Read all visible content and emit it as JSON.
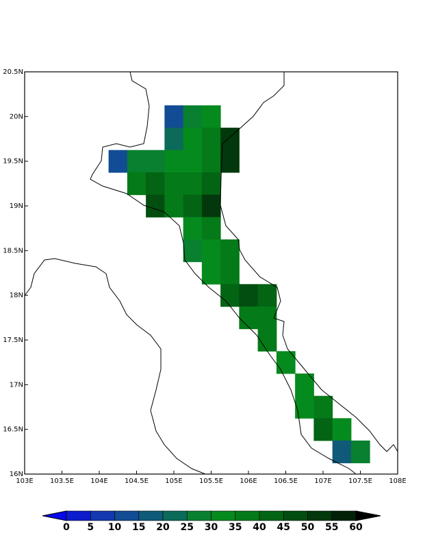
{
  "chart_data": {
    "type": "gridmap",
    "xlim": [
      103,
      108
    ],
    "ylim": [
      16,
      20.5
    ],
    "xticks": [
      {
        "value": 103,
        "label": "103E"
      },
      {
        "value": 103.5,
        "label": "103.5E"
      },
      {
        "value": 104,
        "label": "104E"
      },
      {
        "value": 104.5,
        "label": "104.5E"
      },
      {
        "value": 105,
        "label": "105E"
      },
      {
        "value": 105.5,
        "label": "105.5E"
      },
      {
        "value": 106,
        "label": "106E"
      },
      {
        "value": 106.5,
        "label": "106.5E"
      },
      {
        "value": 107,
        "label": "107E"
      },
      {
        "value": 107.5,
        "label": "107.5E"
      },
      {
        "value": 108,
        "label": "108E"
      }
    ],
    "yticks": [
      {
        "value": 16,
        "label": "16N"
      },
      {
        "value": 16.5,
        "label": "16.5N"
      },
      {
        "value": 17,
        "label": "17N"
      },
      {
        "value": 17.5,
        "label": "17.5N"
      },
      {
        "value": 18,
        "label": "18N"
      },
      {
        "value": 18.5,
        "label": "18.5N"
      },
      {
        "value": 19,
        "label": "19N"
      },
      {
        "value": 19.5,
        "label": "19.5N"
      },
      {
        "value": 20,
        "label": "20N"
      },
      {
        "value": 20.5,
        "label": "20.5N"
      }
    ],
    "levels": [
      0,
      5,
      10,
      15,
      20,
      25,
      30,
      35,
      40,
      45,
      50,
      55,
      60
    ],
    "colors": [
      "#0808e8",
      "#0c1ccc",
      "#1438b0",
      "#124c94",
      "#0f5a78",
      "#0b6a5a",
      "#088030",
      "#058a1e",
      "#047a18",
      "#036414",
      "#024e10",
      "#02380c",
      "#012207",
      "#000000"
    ],
    "cells": [
      {
        "lon": 105.0,
        "lat": 20.0,
        "value": 12
      },
      {
        "lon": 105.25,
        "lat": 20.0,
        "value": 25
      },
      {
        "lon": 105.5,
        "lat": 20.0,
        "value": 33
      },
      {
        "lon": 105.0,
        "lat": 19.75,
        "value": 20
      },
      {
        "lon": 105.25,
        "lat": 19.75,
        "value": 30
      },
      {
        "lon": 105.5,
        "lat": 19.75,
        "value": 35
      },
      {
        "lon": 105.75,
        "lat": 19.75,
        "value": 50
      },
      {
        "lon": 104.25,
        "lat": 19.5,
        "value": 12
      },
      {
        "lon": 104.5,
        "lat": 19.5,
        "value": 25
      },
      {
        "lon": 104.75,
        "lat": 19.5,
        "value": 28
      },
      {
        "lon": 105.0,
        "lat": 19.5,
        "value": 30
      },
      {
        "lon": 105.25,
        "lat": 19.5,
        "value": 33
      },
      {
        "lon": 105.5,
        "lat": 19.5,
        "value": 38
      },
      {
        "lon": 105.75,
        "lat": 19.5,
        "value": 52
      },
      {
        "lon": 104.5,
        "lat": 19.25,
        "value": 35
      },
      {
        "lon": 104.75,
        "lat": 19.25,
        "value": 40
      },
      {
        "lon": 105.0,
        "lat": 19.25,
        "value": 35
      },
      {
        "lon": 105.25,
        "lat": 19.25,
        "value": 35
      },
      {
        "lon": 105.5,
        "lat": 19.25,
        "value": 42
      },
      {
        "lon": 104.75,
        "lat": 19.0,
        "value": 45
      },
      {
        "lon": 105.0,
        "lat": 19.0,
        "value": 38
      },
      {
        "lon": 105.25,
        "lat": 19.0,
        "value": 40
      },
      {
        "lon": 105.5,
        "lat": 19.0,
        "value": 52
      },
      {
        "lon": 105.25,
        "lat": 18.75,
        "value": 30
      },
      {
        "lon": 105.5,
        "lat": 18.75,
        "value": 35
      },
      {
        "lon": 105.25,
        "lat": 18.5,
        "value": 28
      },
      {
        "lon": 105.5,
        "lat": 18.5,
        "value": 33
      },
      {
        "lon": 105.75,
        "lat": 18.5,
        "value": 35
      },
      {
        "lon": 105.5,
        "lat": 18.25,
        "value": 32
      },
      {
        "lon": 105.75,
        "lat": 18.25,
        "value": 35
      },
      {
        "lon": 105.75,
        "lat": 18.0,
        "value": 40
      },
      {
        "lon": 106.0,
        "lat": 18.0,
        "value": 48
      },
      {
        "lon": 106.25,
        "lat": 18.0,
        "value": 42
      },
      {
        "lon": 106.0,
        "lat": 17.75,
        "value": 35
      },
      {
        "lon": 106.25,
        "lat": 17.75,
        "value": 35
      },
      {
        "lon": 106.25,
        "lat": 17.5,
        "value": 35
      },
      {
        "lon": 106.5,
        "lat": 17.25,
        "value": 33
      },
      {
        "lon": 106.75,
        "lat": 17.0,
        "value": 33
      },
      {
        "lon": 106.75,
        "lat": 16.75,
        "value": 33
      },
      {
        "lon": 107.0,
        "lat": 16.75,
        "value": 35
      },
      {
        "lon": 107.0,
        "lat": 16.5,
        "value": 40
      },
      {
        "lon": 107.25,
        "lat": 16.5,
        "value": 33
      },
      {
        "lon": 107.25,
        "lat": 16.25,
        "value": 15
      },
      {
        "lon": 107.5,
        "lat": 16.25,
        "value": 28
      }
    ]
  }
}
